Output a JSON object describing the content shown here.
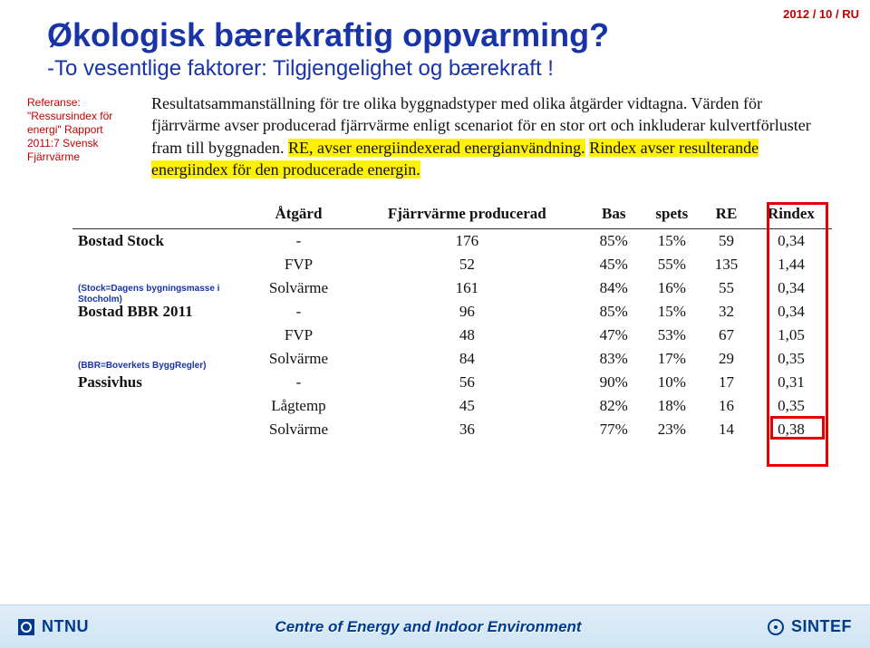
{
  "slide_number": "2012 / 10 / RU",
  "title": "Økologisk bærekraftig oppvarming?",
  "subtitle": "-To vesentlige faktorer: Tilgjengelighet og bærekraft !",
  "reference": {
    "label": "Referanse:",
    "body": "\"Ressursindex för energi\" Rapport 2011:7 Svensk Fjärrvärme"
  },
  "scan_desc": {
    "pre": "Resultatsammanställning för tre olika byggnadstyper med olika åtgärder vidtagna. Värden för fjärrvärme avser producerad fjärrvärme enligt scenariot för en stor ort och inkluderar kulvertförluster fram till byggnaden. ",
    "hl1": "RE, avser energiindexerad energianvändning.",
    "mid": " ",
    "hl2": "Rindex avser resulterande energiindex för den producerade energin."
  },
  "notes": {
    "n1": "(Stock=Dagens bygningsmasse i Stocholm)",
    "n2": "(BBR=Boverkets ByggRegler)"
  },
  "table": {
    "headers": [
      "Åtgärd",
      "Fjärrvärme producerad",
      "Bas",
      "spets",
      "RE",
      "Rindex"
    ],
    "rows": [
      {
        "section": "Bostad Stock",
        "atg": "-",
        "fj": "176",
        "bas": "85%",
        "sp": "15%",
        "re": "59",
        "ri": "0,34"
      },
      {
        "section": "",
        "atg": "FVP",
        "fj": "52",
        "bas": "45%",
        "sp": "55%",
        "re": "135",
        "ri": "1,44"
      },
      {
        "section": "",
        "atg": "Solvärme",
        "fj": "161",
        "bas": "84%",
        "sp": "16%",
        "re": "55",
        "ri": "0,34"
      },
      {
        "section": "Bostad BBR 2011",
        "atg": "-",
        "fj": "96",
        "bas": "85%",
        "sp": "15%",
        "re": "32",
        "ri": "0,34"
      },
      {
        "section": "",
        "atg": "FVP",
        "fj": "48",
        "bas": "47%",
        "sp": "53%",
        "re": "67",
        "ri": "1,05"
      },
      {
        "section": "",
        "atg": "Solvärme",
        "fj": "84",
        "bas": "83%",
        "sp": "17%",
        "re": "29",
        "ri": "0,35"
      },
      {
        "section": "Passivhus",
        "atg": "-",
        "fj": "56",
        "bas": "90%",
        "sp": "10%",
        "re": "17",
        "ri": "0,31"
      },
      {
        "section": "",
        "atg": "Lågtemp",
        "fj": "45",
        "bas": "82%",
        "sp": "18%",
        "re": "16",
        "ri": "0,35"
      },
      {
        "section": "",
        "atg": "Solvärme",
        "fj": "36",
        "bas": "77%",
        "sp": "23%",
        "re": "14",
        "ri": "0,38"
      }
    ]
  },
  "footer": {
    "ntnu": "NTNU",
    "center": "Centre of Energy and Indoor Environment",
    "sintef": "SINTEF"
  },
  "colors": {
    "accent_blue": "#1834a6",
    "accent_red": "#c00000",
    "highlight": "#fff200",
    "box_red": "#e60000",
    "footer_text": "#003a8c"
  }
}
